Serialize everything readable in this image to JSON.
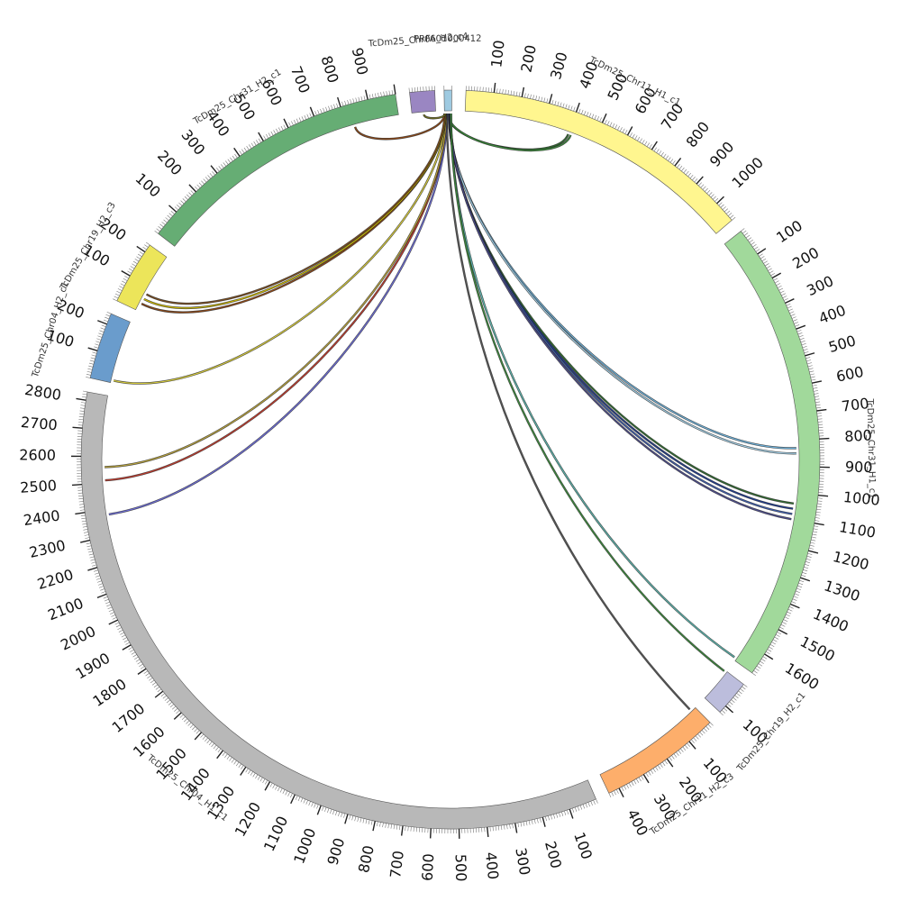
{
  "chart_data": {
    "type": "circos",
    "title": "",
    "unit_kb": true,
    "segments": [
      {
        "name": "PRFA01000412",
        "length": 10,
        "color": "#9ecae1",
        "ticks": []
      },
      {
        "name": "TcDm25_Chr11_H1_c1",
        "length": 1080,
        "color": "#fff68f",
        "ticks": [
          100,
          200,
          300,
          400,
          500,
          600,
          700,
          800,
          900,
          1000
        ]
      },
      {
        "name": "TcDm25_Chr31_H1_c1",
        "length": 1680,
        "color": "#a1d99b",
        "ticks": [
          100,
          200,
          300,
          400,
          500,
          600,
          700,
          800,
          900,
          1000,
          1100,
          1200,
          1300,
          1400,
          1500,
          1600
        ]
      },
      {
        "name": "TcDm25_Chr19_H2_c1",
        "length": 130,
        "color": "#bcbddc",
        "ticks": [
          100
        ]
      },
      {
        "name": "TcDm25_Chr11_H2_c3",
        "length": 440,
        "color": "#fdae6b",
        "ticks": [
          100,
          200,
          300,
          400
        ]
      },
      {
        "name": "TcDm25_Chr04_H1_c1",
        "length": 2830,
        "color": "#b8b8b8",
        "ticks": [
          100,
          200,
          300,
          400,
          500,
          600,
          700,
          800,
          900,
          1000,
          1100,
          1200,
          1300,
          1400,
          1500,
          1600,
          1700,
          1800,
          1900,
          2000,
          2100,
          2200,
          2300,
          2400,
          2500,
          2600,
          2700,
          2800
        ]
      },
      {
        "name": "TcDm25_Chr04_H2_c1",
        "length": 240,
        "color": "#6a9ccc",
        "ticks": [
          100,
          200
        ]
      },
      {
        "name": "TcDm25_Chr19_H2_c3",
        "length": 230,
        "color": "#ece55a",
        "ticks": [
          100,
          200
        ]
      },
      {
        "name": "TcDm25_Chr31_H2_c1",
        "length": 1000,
        "color": "#66ad74",
        "ticks": [
          100,
          200,
          300,
          400,
          500,
          600,
          700,
          800,
          900
        ]
      },
      {
        "name": "TcDm25_Chr06_H2_c4",
        "length": 90,
        "color": "#9a86c2",
        "ticks": []
      }
    ],
    "links": [
      {
        "from": "PRFA01000412",
        "from_pos": 4,
        "to": "TcDm25_Chr11_H1_c1",
        "to_pos": 400,
        "color": "#2d6b2d"
      },
      {
        "from": "PRFA01000412",
        "from_pos": 5,
        "to": "TcDm25_Chr11_H1_c1",
        "to_pos": 410,
        "color": "#3a8a3a"
      },
      {
        "from": "PRFA01000412",
        "from_pos": 6,
        "to": "TcDm25_Chr31_H1_c1",
        "to_pos": 830,
        "color": "#6baed6"
      },
      {
        "from": "PRFA01000412",
        "from_pos": 6,
        "to": "TcDm25_Chr31_H1_c1",
        "to_pos": 850,
        "color": "#9ecae1"
      },
      {
        "from": "PRFA01000412",
        "from_pos": 7,
        "to": "TcDm25_Chr31_H1_c1",
        "to_pos": 1040,
        "color": "#2d6b2d"
      },
      {
        "from": "PRFA01000412",
        "from_pos": 7,
        "to": "TcDm25_Chr31_H1_c1",
        "to_pos": 1060,
        "color": "#1f3a8a"
      },
      {
        "from": "PRFA01000412",
        "from_pos": 8,
        "to": "TcDm25_Chr31_H1_c1",
        "to_pos": 1080,
        "color": "#3c5aa6"
      },
      {
        "from": "PRFA01000412",
        "from_pos": 8,
        "to": "TcDm25_Chr31_H1_c1",
        "to_pos": 1100,
        "color": "#4a4a8a"
      },
      {
        "from": "PRFA01000412",
        "from_pos": 9,
        "to": "TcDm25_Chr31_H1_c1",
        "to_pos": 1670,
        "color": "#5ab4ac"
      },
      {
        "from": "PRFA01000412",
        "from_pos": 9,
        "to": "TcDm25_Chr19_H2_c1",
        "to_pos": 5,
        "color": "#3a8a3a"
      },
      {
        "from": "PRFA01000412",
        "from_pos": 3,
        "to": "TcDm25_Chr11_H2_c3",
        "to_pos": 20,
        "color": "#555555"
      },
      {
        "from": "PRFA01000412",
        "from_pos": 3,
        "to": "TcDm25_Chr04_H1_c1",
        "to_pos": 2380,
        "color": "#6b6bd6"
      },
      {
        "from": "PRFA01000412",
        "from_pos": 2,
        "to": "TcDm25_Chr04_H1_c1",
        "to_pos": 2510,
        "color": "#c0392b"
      },
      {
        "from": "PRFA01000412",
        "from_pos": 2,
        "to": "TcDm25_Chr04_H1_c1",
        "to_pos": 2560,
        "color": "#b8a23a"
      },
      {
        "from": "PRFA01000412",
        "from_pos": 1,
        "to": "TcDm25_Chr04_H2_c1",
        "to_pos": 10,
        "color": "#d4c93a"
      },
      {
        "from": "PRFA01000412",
        "from_pos": 1,
        "to": "TcDm25_Chr19_H2_c3",
        "to_pos": 30,
        "color": "#8b4513"
      },
      {
        "from": "PRFA01000412",
        "from_pos": 1,
        "to": "TcDm25_Chr19_H2_c3",
        "to_pos": 50,
        "color": "#c8b400"
      },
      {
        "from": "PRFA01000412",
        "from_pos": 0,
        "to": "TcDm25_Chr19_H2_c3",
        "to_pos": 70,
        "color": "#7a4a1a"
      },
      {
        "from": "PRFA01000412",
        "from_pos": 0,
        "to": "TcDm25_Chr31_H2_c1",
        "to_pos": 830,
        "color": "#8b4513"
      },
      {
        "from": "TcDm25_Chr06_H2_c4",
        "from_pos": 45,
        "to": "PRFA01000412",
        "to_pos": 1,
        "color": "#6b6b1a"
      }
    ]
  }
}
